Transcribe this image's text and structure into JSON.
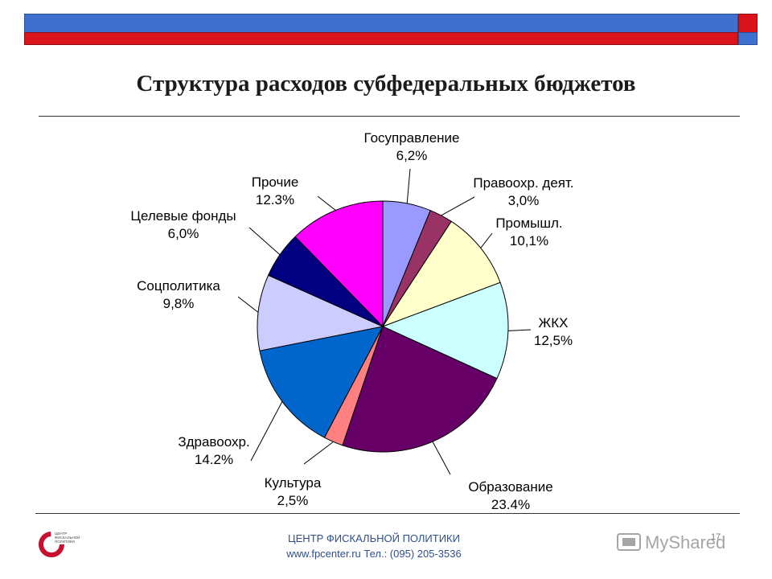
{
  "title": "Структура расходов субфедеральных бюджетов",
  "chart_data": {
    "type": "pie",
    "title": "Структура расходов субфедеральных бюджетов",
    "slices": [
      {
        "label": "Госуправление",
        "value_label": "6,2%",
        "value": 6.2,
        "color": "#9999ff"
      },
      {
        "label": "Правоохр. деят.",
        "value_label": "3,0%",
        "value": 3.0,
        "color": "#993366"
      },
      {
        "label": "Промышл.",
        "value_label": "10,1%",
        "value": 10.1,
        "color": "#ffffcc"
      },
      {
        "label": "ЖКХ",
        "value_label": "12,5%",
        "value": 12.5,
        "color": "#ccffff"
      },
      {
        "label": "Образование",
        "value_label": "23.4%",
        "value": 23.4,
        "color": "#660066"
      },
      {
        "label": "Культура",
        "value_label": "2,5%",
        "value": 2.5,
        "color": "#ff8080"
      },
      {
        "label": "Здравоохр.",
        "value_label": "14.2%",
        "value": 14.2,
        "color": "#0066cc"
      },
      {
        "label": "Соцполитика",
        "value_label": "9,8%",
        "value": 9.8,
        "color": "#ccccff"
      },
      {
        "label": "Целевые фонды",
        "value_label": "6,0%",
        "value": 6.0,
        "color": "#000080"
      },
      {
        "label": "Прочие",
        "value_label": "12.3%",
        "value": 12.3,
        "color": "#ff00ff"
      }
    ],
    "start": "12 o'clock",
    "direction": "clockwise",
    "legend": "none"
  },
  "footer": {
    "org": "ЦЕНТР ФИСКАЛЬНОЙ ПОЛИТИКИ",
    "contact": "www.fpcenter.ru   Тел.: (095) 205-3536",
    "logo_text": [
      "ЦЕНТР",
      "ФИСКАЛЬНОЙ",
      "ПОЛИТИКИ"
    ]
  },
  "page_number": "17",
  "watermark": "MyShared"
}
